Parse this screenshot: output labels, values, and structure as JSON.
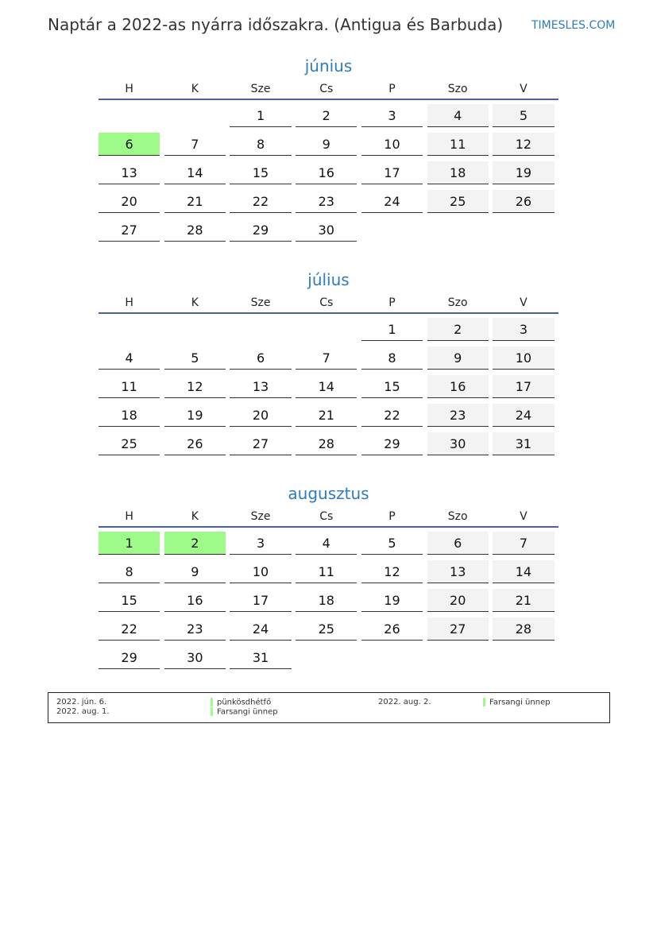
{
  "header": {
    "title": "Naptár a 2022-as nyárra időszakra. (Antigua és Barbuda)",
    "brand": "TIMESLES.COM"
  },
  "weekdays": [
    "H",
    "K",
    "Sze",
    "Cs",
    "P",
    "Szo",
    "V"
  ],
  "colors": {
    "accent": "#2e7bbf",
    "holiday": "#9efb8a",
    "weekend": "#f3f3f3"
  },
  "months": [
    {
      "name": "június",
      "weeks": [
        [
          null,
          null,
          1,
          2,
          3,
          4,
          5
        ],
        [
          6,
          7,
          8,
          9,
          10,
          11,
          12
        ],
        [
          13,
          14,
          15,
          16,
          17,
          18,
          19
        ],
        [
          20,
          21,
          22,
          23,
          24,
          25,
          26
        ],
        [
          27,
          28,
          29,
          30,
          null,
          null,
          null
        ]
      ],
      "holidays": [
        6
      ]
    },
    {
      "name": "július",
      "weeks": [
        [
          null,
          null,
          null,
          null,
          1,
          2,
          3
        ],
        [
          4,
          5,
          6,
          7,
          8,
          9,
          10
        ],
        [
          11,
          12,
          13,
          14,
          15,
          16,
          17
        ],
        [
          18,
          19,
          20,
          21,
          22,
          23,
          24
        ],
        [
          25,
          26,
          27,
          28,
          29,
          30,
          31
        ]
      ],
      "holidays": []
    },
    {
      "name": "augusztus",
      "weeks": [
        [
          1,
          2,
          3,
          4,
          5,
          6,
          7
        ],
        [
          8,
          9,
          10,
          11,
          12,
          13,
          14
        ],
        [
          15,
          16,
          17,
          18,
          19,
          20,
          21
        ],
        [
          22,
          23,
          24,
          25,
          26,
          27,
          28
        ],
        [
          29,
          30,
          31,
          null,
          null,
          null,
          null
        ]
      ],
      "holidays": [
        1,
        2
      ]
    }
  ],
  "legend": [
    {
      "date": "2022. jún. 6.",
      "name": "pünkösdhétfő"
    },
    {
      "date": "2022. aug. 1.",
      "name": "Farsangi ünnep"
    },
    {
      "date": "2022. aug. 2.",
      "name": "Farsangi ünnep"
    }
  ]
}
